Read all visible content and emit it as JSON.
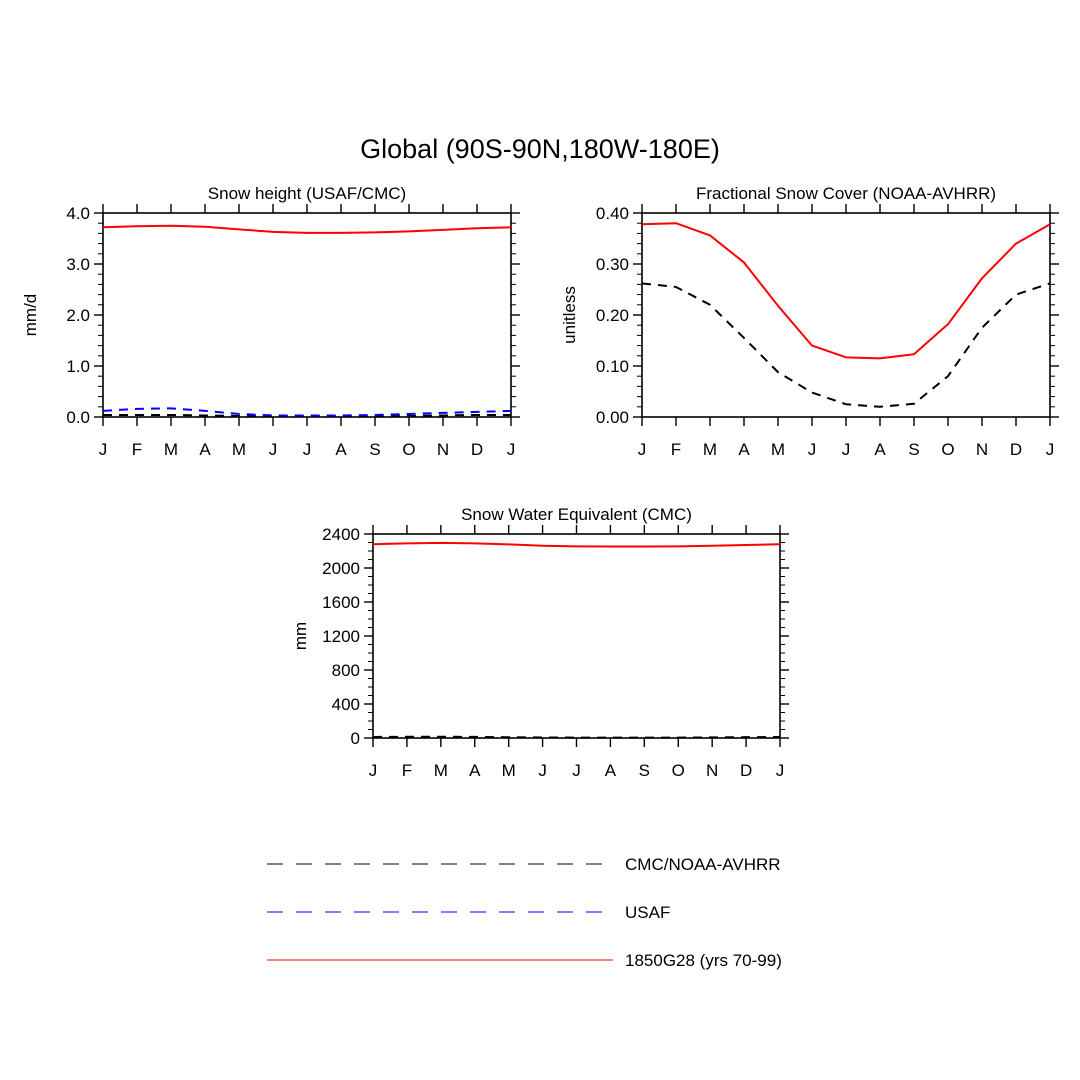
{
  "figure": {
    "title": "Global (90S-90N,180W-180E)"
  },
  "legend": {
    "entries": [
      {
        "label": "CMC/NOAA-AVHRR",
        "color": "#000000",
        "style": "dashed"
      },
      {
        "label": "USAF",
        "color": "#0000ff",
        "style": "dashed"
      },
      {
        "label": "1850G28 (yrs 70-99)",
        "color": "#ff0000",
        "style": "solid"
      }
    ]
  },
  "chart_data": [
    {
      "type": "line",
      "title": "Snow height (USAF/CMC)",
      "xlabel": "",
      "ylabel": "mm/d",
      "categories": [
        "J",
        "F",
        "M",
        "A",
        "M",
        "J",
        "J",
        "A",
        "S",
        "O",
        "N",
        "D",
        "J"
      ],
      "ylim": [
        0,
        4
      ],
      "yticks": [
        0,
        1,
        2,
        3,
        4
      ],
      "ytick_labels": [
        "0.0",
        "1.0",
        "2.0",
        "3.0",
        "4.0"
      ],
      "grid": false,
      "series": [
        {
          "name": "1850G28 (yrs 70-99)",
          "color": "#ff0000",
          "style": "solid",
          "values": [
            3.72,
            3.74,
            3.75,
            3.73,
            3.68,
            3.63,
            3.61,
            3.61,
            3.62,
            3.64,
            3.67,
            3.7,
            3.72
          ]
        },
        {
          "name": "USAF",
          "color": "#0000ff",
          "style": "dashed",
          "values": [
            0.12,
            0.16,
            0.17,
            0.12,
            0.06,
            0.03,
            0.03,
            0.03,
            0.04,
            0.06,
            0.08,
            0.1,
            0.12
          ]
        },
        {
          "name": "CMC/NOAA-AVHRR",
          "color": "#000000",
          "style": "dashed",
          "values": [
            0.04,
            0.04,
            0.04,
            0.03,
            0.02,
            0.01,
            0.01,
            0.01,
            0.01,
            0.02,
            0.03,
            0.04,
            0.04
          ]
        }
      ]
    },
    {
      "type": "line",
      "title": "Fractional Snow Cover (NOAA-AVHRR)",
      "xlabel": "",
      "ylabel": "unitless",
      "categories": [
        "J",
        "F",
        "M",
        "A",
        "M",
        "J",
        "J",
        "A",
        "S",
        "O",
        "N",
        "D",
        "J"
      ],
      "ylim": [
        0,
        0.4
      ],
      "yticks": [
        0,
        0.1,
        0.2,
        0.3,
        0.4
      ],
      "ytick_labels": [
        "0.00",
        "0.10",
        "0.20",
        "0.30",
        "0.40"
      ],
      "grid": false,
      "series": [
        {
          "name": "1850G28 (yrs 70-99)",
          "color": "#ff0000",
          "style": "solid",
          "values": [
            0.378,
            0.38,
            0.356,
            0.303,
            0.218,
            0.14,
            0.117,
            0.115,
            0.123,
            0.182,
            0.272,
            0.34,
            0.378
          ]
        },
        {
          "name": "CMC/NOAA-AVHRR",
          "color": "#000000",
          "style": "dashed",
          "values": [
            0.262,
            0.255,
            0.22,
            0.155,
            0.088,
            0.048,
            0.025,
            0.02,
            0.026,
            0.08,
            0.175,
            0.24,
            0.262
          ]
        }
      ]
    },
    {
      "type": "line",
      "title": "Snow Water Equivalent (CMC)",
      "xlabel": "",
      "ylabel": "mm",
      "categories": [
        "J",
        "F",
        "M",
        "A",
        "M",
        "J",
        "J",
        "A",
        "S",
        "O",
        "N",
        "D",
        "J"
      ],
      "ylim": [
        0,
        2400
      ],
      "yticks": [
        0,
        400,
        800,
        1200,
        1600,
        2000,
        2400
      ],
      "ytick_labels": [
        "0",
        "400",
        "800",
        "1200",
        "1600",
        "2000",
        "2400"
      ],
      "grid": false,
      "series": [
        {
          "name": "1850G28 (yrs 70-99)",
          "color": "#ff0000",
          "style": "solid",
          "values": [
            2280,
            2290,
            2295,
            2290,
            2278,
            2262,
            2255,
            2253,
            2253,
            2255,
            2262,
            2270,
            2280
          ]
        },
        {
          "name": "CMC/NOAA-AVHRR",
          "color": "#000000",
          "style": "dashed",
          "values": [
            12,
            14,
            15,
            13,
            9,
            6,
            5,
            4,
            4,
            5,
            7,
            10,
            12
          ]
        }
      ]
    }
  ]
}
